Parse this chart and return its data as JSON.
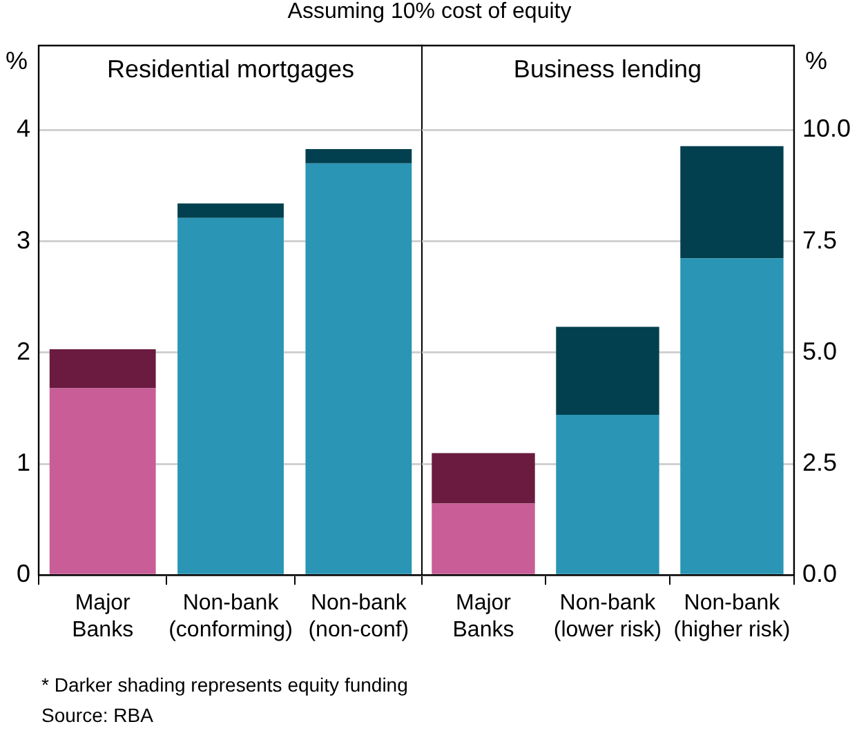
{
  "chart_data": [
    {
      "type": "bar",
      "subtitle": "Assuming 10% cost of equity",
      "title": "Residential mortgages",
      "ylabel": "%",
      "categories": [
        "Major Banks",
        "Non-bank (conforming)",
        "Non-bank (non-conf)"
      ],
      "stacked": true,
      "grid": "y",
      "ylim": [
        0,
        4.76
      ],
      "yticks": [
        0,
        1,
        2,
        3,
        4
      ],
      "series": [
        {
          "colors": [
            "#c85d97",
            "#2a95b4",
            "#2a95b4"
          ],
          "values": [
            1.68,
            3.21,
            3.7
          ]
        },
        {
          "colors": [
            "#6a1b3f",
            "#02404f",
            "#02404f"
          ],
          "values": [
            0.35,
            0.13,
            0.13
          ]
        }
      ],
      "annotations": [
        "* Darker shading represents equity funding",
        "Source: RBA"
      ]
    },
    {
      "type": "bar",
      "title": "Business lending",
      "y2label": "%",
      "categories": [
        "Major Banks",
        "Non-bank (lower risk)",
        "Non-bank (higher risk)"
      ],
      "stacked": true,
      "grid": "y",
      "y2lim": [
        0,
        11.9
      ],
      "y2ticks": [
        {
          "value": 0,
          "label": "0.0"
        },
        {
          "value": 2.5,
          "label": "2.5"
        },
        {
          "value": 5,
          "label": "5.0"
        },
        {
          "value": 7.5,
          "label": "7.5"
        },
        {
          "value": 10,
          "label": "10.0"
        }
      ],
      "series": [
        {
          "axis": "y2",
          "colors": [
            "#c85d97",
            "#2a95b4",
            "#2a95b4"
          ],
          "values": [
            1.61,
            3.6,
            7.12
          ]
        },
        {
          "axis": "y2",
          "colors": [
            "#6a1b3f",
            "#02404f",
            "#02404f"
          ],
          "values": [
            1.13,
            1.98,
            2.52
          ]
        }
      ]
    }
  ]
}
